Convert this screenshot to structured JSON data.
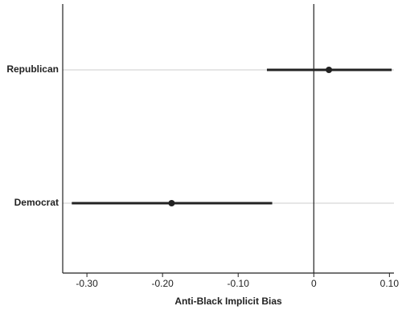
{
  "chart_data": {
    "type": "dotwhisker",
    "xlabel": "Anti-Black Implicit Bias",
    "categories": [
      "Republican",
      "Democrat"
    ],
    "values": [
      0.02,
      -0.188
    ],
    "lower": [
      -0.062,
      -0.32
    ],
    "upper": [
      0.103,
      -0.055
    ],
    "color": "#222222",
    "xlim": [
      -0.332,
      0.106
    ],
    "xticks": [
      {
        "value": -0.3,
        "label": "-0.30"
      },
      {
        "value": -0.2,
        "label": "-0.20"
      },
      {
        "value": -0.1,
        "label": "-0.10"
      },
      0,
      {
        "value": 0.1,
        "label": "0.10"
      }
    ],
    "reference_line": 0,
    "grid": true
  }
}
